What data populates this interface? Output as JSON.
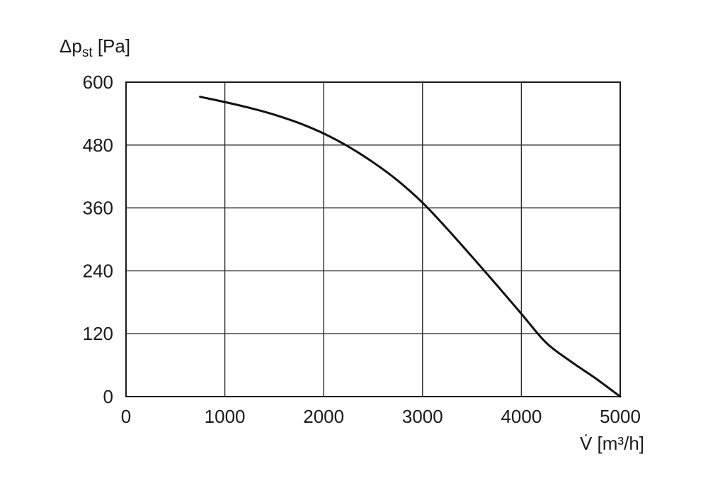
{
  "chart_data": {
    "type": "line",
    "title": "",
    "xlabel": "V̇ [m³/h]",
    "ylabel": "Δp",
    "ylabel_sub": "st",
    "ylabel_unit": " [Pa]",
    "xlim": [
      0,
      5000
    ],
    "ylim": [
      0,
      600
    ],
    "xticks": [
      0,
      1000,
      2000,
      3000,
      4000,
      5000
    ],
    "yticks": [
      0,
      120,
      240,
      360,
      480,
      600
    ],
    "grid": true,
    "series": [
      {
        "x": [
          750,
          1000,
          1250,
          1500,
          1750,
          2000,
          2250,
          2500,
          2750,
          3000,
          3250,
          3500,
          3750,
          4000,
          4250,
          4500,
          4750,
          5000
        ],
        "y": [
          572,
          562,
          551,
          538,
          522,
          502,
          477,
          447,
          412,
          370,
          320,
          267,
          213,
          158,
          103,
          67,
          35,
          0
        ],
        "color": "#111111"
      }
    ]
  }
}
